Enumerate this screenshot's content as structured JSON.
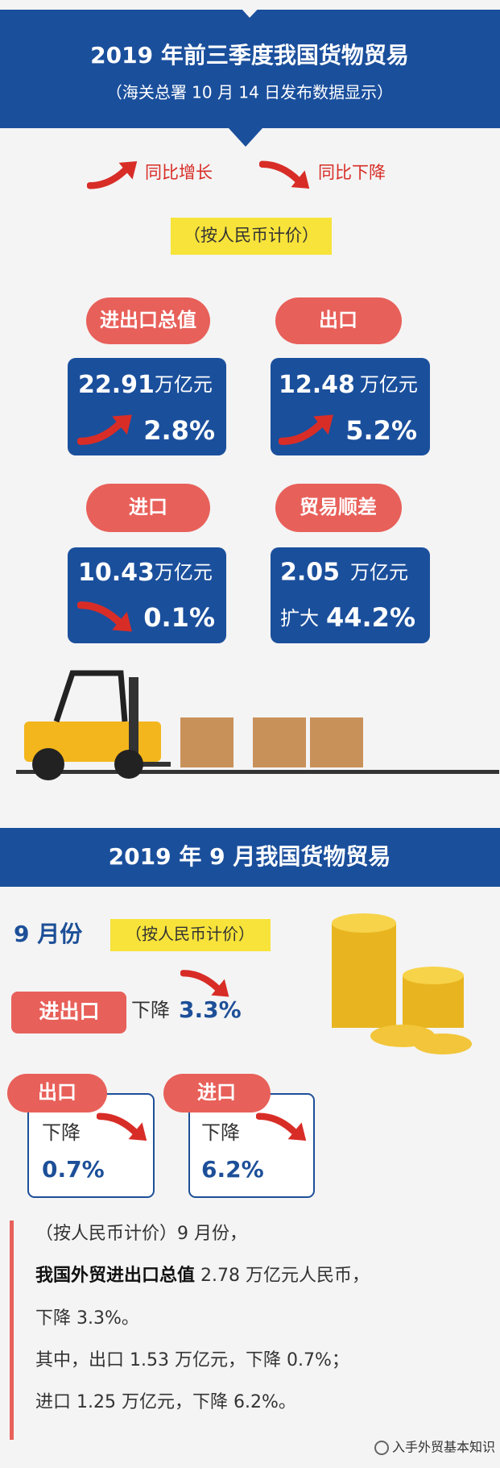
{
  "header": {
    "title": "2019 年前三季度我国货物贸易",
    "subtitle": "（海关总署 10 月 14 日发布数据显示）"
  },
  "legend": {
    "up": "同比增长",
    "down": "同比下降"
  },
  "currency_note": "（按人民币计价）",
  "cards": [
    {
      "label": "进出口总值",
      "amount": "22.91",
      "unit": "万亿元",
      "change": "2.8%"
    },
    {
      "label": "出口",
      "amount": "12.48",
      "unit": "万亿元",
      "change": "5.2%"
    },
    {
      "label": "进口",
      "amount": "10.43",
      "unit": "万亿元",
      "change": "0.1%"
    },
    {
      "label": "贸易顺差",
      "amount": "2.05",
      "unit": "万亿元",
      "prefix": "扩大",
      "change": "44.2%"
    }
  ],
  "september": {
    "title": "2019 年 9 月我国货物贸易",
    "month": "9 月份",
    "note": "（按人民币计价）",
    "total": {
      "label": "进出口",
      "direction": "下降",
      "change": "3.3%"
    },
    "exports": {
      "label": "出口",
      "direction": "下降",
      "change": "0.7%"
    },
    "imports": {
      "label": "进口",
      "direction": "下降",
      "change": "6.2%"
    }
  },
  "summary": {
    "line1": "（按人民币计价）9 月份，",
    "line2_bold": "我国外贸进出口总值",
    "line2": " 2.78 万亿元人民币，",
    "line3": "下降 3.3%。",
    "line4": "其中，出口 1.53 万亿元，下降 0.7%；",
    "line5": "进口 1.25 万亿元，下降 6.2%。"
  },
  "watermark": "入手外贸基本知识"
}
